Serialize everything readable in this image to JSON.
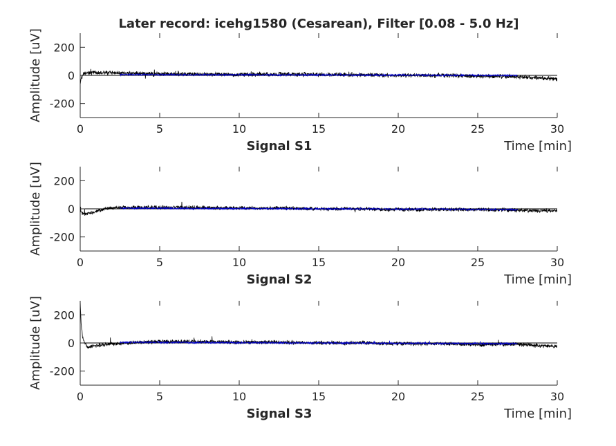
{
  "figure": {
    "title": "Later record: icehg1580 (Cesarean), Filter [0.08 - 5.0 Hz]"
  },
  "chart_data": [
    {
      "type": "line",
      "title": "Signal S1",
      "xlabel": "Time [min]",
      "ylabel": "Amplitude [uV]",
      "xlim": [
        0,
        30
      ],
      "ylim": [
        -300,
        300
      ],
      "xticks": [
        0,
        5,
        10,
        15,
        20,
        25,
        30
      ],
      "yticks": [
        -200,
        0,
        200
      ],
      "grid": false,
      "series": [
        {
          "color": "#000000",
          "x": [
            0,
            0.05,
            0.2,
            0.5,
            1,
            1.5,
            2.5,
            5,
            7.5,
            10,
            12.5,
            15,
            17.5,
            20,
            22.5,
            25,
            27.5,
            30
          ],
          "values": [
            -60,
            -20,
            10,
            20,
            20,
            20,
            15,
            10,
            10,
            5,
            10,
            5,
            5,
            0,
            0,
            -5,
            -10,
            -25
          ],
          "noise_amplitude": 10
        },
        {
          "color": "#0000cc",
          "x": [
            2.5,
            27.5
          ],
          "values": [
            5,
            0
          ],
          "noise_amplitude": 5
        }
      ]
    },
    {
      "type": "line",
      "title": "Signal S2",
      "xlabel": "Time [min]",
      "ylabel": "Amplitude [uV]",
      "xlim": [
        0,
        30
      ],
      "ylim": [
        -300,
        300
      ],
      "xticks": [
        0,
        5,
        10,
        15,
        20,
        25,
        30
      ],
      "yticks": [
        -200,
        0,
        200
      ],
      "grid": false,
      "series": [
        {
          "color": "#000000",
          "x": [
            0,
            0.3,
            0.8,
            1.5,
            2.5,
            5,
            7.5,
            10,
            12.5,
            15,
            17.5,
            20,
            22.5,
            25,
            27.5,
            30
          ],
          "values": [
            -25,
            -35,
            -25,
            0,
            10,
            10,
            10,
            5,
            5,
            0,
            0,
            -5,
            -5,
            -5,
            -10,
            -15
          ],
          "noise_amplitude": 9
        },
        {
          "color": "#0000cc",
          "x": [
            2.5,
            27.5
          ],
          "values": [
            5,
            -5
          ],
          "noise_amplitude": 5
        }
      ]
    },
    {
      "type": "line",
      "title": "Signal S3",
      "xlabel": "Time [min]",
      "ylabel": "Amplitude [uV]",
      "xlim": [
        0,
        30
      ],
      "ylim": [
        -300,
        300
      ],
      "xticks": [
        0,
        5,
        10,
        15,
        20,
        25,
        30
      ],
      "yticks": [
        -200,
        0,
        200
      ],
      "grid": false,
      "series": [
        {
          "color": "#000000",
          "x": [
            0,
            0.05,
            0.15,
            0.3,
            0.5,
            1,
            2,
            5,
            7.5,
            10,
            12.5,
            15,
            17.5,
            20,
            22.5,
            25,
            27.5,
            30
          ],
          "values": [
            300,
            150,
            40,
            -10,
            -30,
            -20,
            -5,
            10,
            10,
            5,
            5,
            0,
            0,
            -5,
            -5,
            -10,
            -10,
            -25
          ],
          "noise_amplitude": 9
        },
        {
          "color": "#0000cc",
          "x": [
            2.5,
            27.5
          ],
          "values": [
            5,
            -5
          ],
          "noise_amplitude": 5
        }
      ]
    }
  ]
}
